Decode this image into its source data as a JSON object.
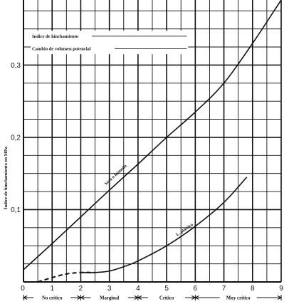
{
  "chart_data": {
    "type": "line",
    "ylabel": "Índice de hinchamiento en MPa",
    "x_ticks": [
      "0",
      "1",
      "2",
      "3",
      "4",
      "5",
      "6",
      "7",
      "8",
      "9"
    ],
    "y_ticks": [
      "0,1",
      "0,2",
      "0,3"
    ],
    "xlim": [
      0,
      9
    ],
    "ylim": [
      0,
      0.39
    ],
    "grid": true,
    "legend": {
      "entries": [
        {
          "label": "Índice de hinchamiento",
          "dash": "solid"
        },
        {
          "label": "Cambio de volumen potencial",
          "dash": "solid"
        }
      ],
      "placement": "top-left"
    },
    "series": [
      {
        "name": "Seco o húmedo",
        "style": "solid",
        "x": [
          0,
          1,
          2,
          3,
          4,
          5,
          6,
          7,
          8,
          9
        ],
        "y": [
          0.017,
          0.053,
          0.09,
          0.127,
          0.163,
          0.2,
          0.235,
          0.275,
          0.33,
          0.39
        ]
      },
      {
        "name": "L. plástico",
        "style": "solid",
        "dashed_until_x": 2.3,
        "x": [
          0.5,
          1,
          1.5,
          2,
          2.5,
          3,
          3.5,
          4,
          5,
          6,
          7,
          7.8
        ],
        "y": [
          0,
          0.006,
          0.011,
          0.013,
          0.013,
          0.015,
          0.021,
          0.029,
          0.05,
          0.077,
          0.11,
          0.145
        ]
      }
    ],
    "zones": [
      {
        "label": "No crítico",
        "from": 0,
        "to": 2
      },
      {
        "label": "Marginal",
        "from": 2,
        "to": 4
      },
      {
        "label": "Crítico",
        "from": 4,
        "to": 6
      },
      {
        "label": "Muy crítico",
        "from": 6,
        "to": 9
      }
    ],
    "colors": {
      "line": "#111111",
      "grid": "#111111",
      "background": "#ffffff"
    }
  }
}
